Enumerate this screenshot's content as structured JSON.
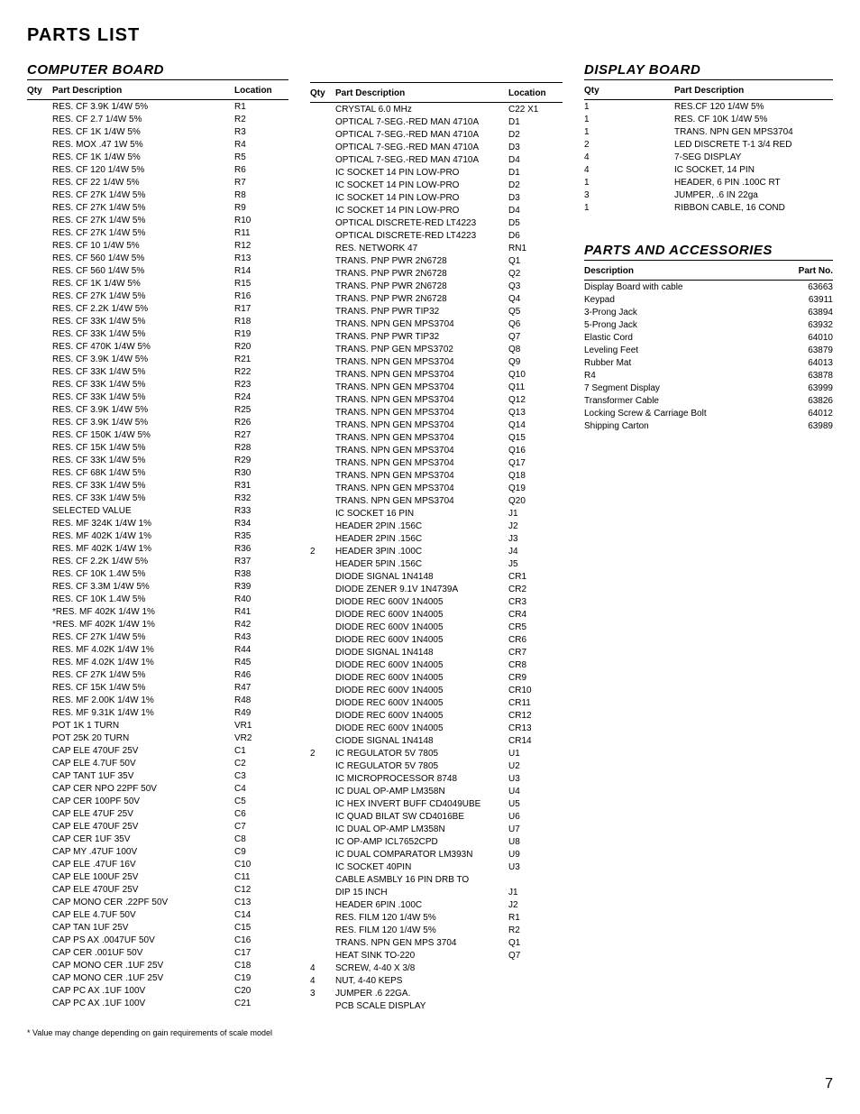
{
  "page": {
    "title": "PARTS LIST",
    "footnote": "* Value may change depending on gain requirements of scale model",
    "page_number": "7"
  },
  "computer_board": {
    "title": "COMPUTER BOARD",
    "headers": {
      "qty": "Qty",
      "desc": "Part Description",
      "loc": "Location"
    },
    "col1": [
      {
        "qty": "",
        "desc": "RES. CF 3.9K 1/4W 5%",
        "loc": "R1"
      },
      {
        "qty": "",
        "desc": "RES. CF 2.7 1/4W 5%",
        "loc": "R2"
      },
      {
        "qty": "",
        "desc": "RES. CF 1K 1/4W 5%",
        "loc": "R3"
      },
      {
        "qty": "",
        "desc": "RES. MOX .47 1W 5%",
        "loc": "R4"
      },
      {
        "qty": "",
        "desc": "RES. CF 1K 1/4W 5%",
        "loc": "R5"
      },
      {
        "qty": "",
        "desc": "RES. CF 120 1/4W 5%",
        "loc": "R6"
      },
      {
        "qty": "",
        "desc": "RES. CF 22 1/4W 5%",
        "loc": "R7"
      },
      {
        "qty": "",
        "desc": "RES. CF 27K 1/4W 5%",
        "loc": "R8"
      },
      {
        "qty": "",
        "desc": "RES. CF 27K 1/4W 5%",
        "loc": "R9"
      },
      {
        "qty": "",
        "desc": "RES. CF 27K 1/4W 5%",
        "loc": "R10"
      },
      {
        "qty": "",
        "desc": "RES. CF 27K 1/4W 5%",
        "loc": "R11"
      },
      {
        "qty": "",
        "desc": "RES. CF 10 1/4W 5%",
        "loc": "R12"
      },
      {
        "qty": "",
        "desc": "RES. CF 560 1/4W 5%",
        "loc": "R13"
      },
      {
        "qty": "",
        "desc": "RES. CF 560 1/4W 5%",
        "loc": "R14"
      },
      {
        "qty": "",
        "desc": "RES. CF 1K 1/4W 5%",
        "loc": "R15"
      },
      {
        "qty": "",
        "desc": "RES. CF 27K 1/4W 5%",
        "loc": "R16"
      },
      {
        "qty": "",
        "desc": "RES. CF 2.2K 1/4W 5%",
        "loc": "R17"
      },
      {
        "qty": "",
        "desc": "RES. CF 33K 1/4W 5%",
        "loc": "R18"
      },
      {
        "qty": "",
        "desc": "RES. CF 33K 1/4W 5%",
        "loc": "R19"
      },
      {
        "qty": "",
        "desc": "RES. CF 470K 1/4W 5%",
        "loc": "R20"
      },
      {
        "qty": "",
        "desc": "RES. CF 3.9K 1/4W 5%",
        "loc": "R21"
      },
      {
        "qty": "",
        "desc": "RES. CF 33K 1/4W 5%",
        "loc": "R22"
      },
      {
        "qty": "",
        "desc": "RES. CF 33K 1/4W 5%",
        "loc": "R23"
      },
      {
        "qty": "",
        "desc": "RES. CF 33K 1/4W 5%",
        "loc": "R24"
      },
      {
        "qty": "",
        "desc": "RES. CF 3.9K 1/4W 5%",
        "loc": "R25"
      },
      {
        "qty": "",
        "desc": "RES. CF 3.9K 1/4W 5%",
        "loc": "R26"
      },
      {
        "qty": "",
        "desc": "RES. CF 150K 1/4W 5%",
        "loc": "R27"
      },
      {
        "qty": "",
        "desc": "RES. CF 15K 1/4W 5%",
        "loc": "R28"
      },
      {
        "qty": "",
        "desc": "RES. CF 33K 1/4W 5%",
        "loc": "R29"
      },
      {
        "qty": "",
        "desc": "RES. CF 68K 1/4W 5%",
        "loc": "R30"
      },
      {
        "qty": "",
        "desc": "RES. CF 33K 1/4W 5%",
        "loc": "R31"
      },
      {
        "qty": "",
        "desc": "RES. CF 33K 1/4W 5%",
        "loc": "R32"
      },
      {
        "qty": "",
        "desc": "SELECTED VALUE",
        "loc": "R33"
      },
      {
        "qty": "",
        "desc": "RES. MF 324K 1/4W 1%",
        "loc": "R34"
      },
      {
        "qty": "",
        "desc": "RES. MF 402K 1/4W 1%",
        "loc": "R35"
      },
      {
        "qty": "",
        "desc": "RES. MF 402K 1/4W 1%",
        "loc": "R36"
      },
      {
        "qty": "",
        "desc": "RES. CF 2.2K 1/4W 5%",
        "loc": "R37"
      },
      {
        "qty": "",
        "desc": "RES. CF 10K 1.4W 5%",
        "loc": "R38"
      },
      {
        "qty": "",
        "desc": "RES. CF 3.3M 1/4W 5%",
        "loc": "R39"
      },
      {
        "qty": "",
        "desc": "RES. CF 10K 1.4W 5%",
        "loc": "R40"
      },
      {
        "qty": "",
        "desc": "*RES. MF 402K 1/4W 1%",
        "loc": "R41"
      },
      {
        "qty": "",
        "desc": "*RES. MF 402K 1/4W 1%",
        "loc": "R42"
      },
      {
        "qty": "",
        "desc": "RES. CF 27K 1/4W 5%",
        "loc": "R43"
      },
      {
        "qty": "",
        "desc": "RES. MF 4.02K 1/4W 1%",
        "loc": "R44"
      },
      {
        "qty": "",
        "desc": "RES. MF 4.02K 1/4W 1%",
        "loc": "R45"
      },
      {
        "qty": "",
        "desc": "RES. CF 27K 1/4W 5%",
        "loc": "R46"
      },
      {
        "qty": "",
        "desc": "RES. CF 15K 1/4W 5%",
        "loc": "R47"
      },
      {
        "qty": "",
        "desc": "RES. MF 2.00K 1/4W 1%",
        "loc": "R48"
      },
      {
        "qty": "",
        "desc": "RES. MF 9.31K 1/4W 1%",
        "loc": "R49"
      },
      {
        "qty": "",
        "desc": "POT 1K 1 TURN",
        "loc": "VR1"
      },
      {
        "qty": "",
        "desc": "POT 25K 20 TURN",
        "loc": "VR2"
      },
      {
        "qty": "",
        "desc": "CAP ELE 470UF 25V",
        "loc": "C1"
      },
      {
        "qty": "",
        "desc": "CAP ELE 4.7UF 50V",
        "loc": "C2"
      },
      {
        "qty": "",
        "desc": "CAP TANT 1UF 35V",
        "loc": "C3"
      },
      {
        "qty": "",
        "desc": "CAP CER NPO 22PF 50V",
        "loc": "C4"
      },
      {
        "qty": "",
        "desc": "CAP CER 100PF 50V",
        "loc": "C5"
      },
      {
        "qty": "",
        "desc": "CAP ELE 47UF 25V",
        "loc": "C6"
      },
      {
        "qty": "",
        "desc": "CAP ELE 470UF 25V",
        "loc": "C7"
      },
      {
        "qty": "",
        "desc": "CAP CER 1UF 35V",
        "loc": "C8"
      },
      {
        "qty": "",
        "desc": "CAP MY .47UF 100V",
        "loc": "C9"
      },
      {
        "qty": "",
        "desc": "CAP ELE .47UF 16V",
        "loc": "C10"
      },
      {
        "qty": "",
        "desc": "CAP ELE 100UF 25V",
        "loc": "C11"
      },
      {
        "qty": "",
        "desc": "CAP ELE 470UF 25V",
        "loc": "C12"
      },
      {
        "qty": "",
        "desc": "CAP MONO CER .22PF 50V",
        "loc": "C13"
      },
      {
        "qty": "",
        "desc": "CAP ELE 4.7UF 50V",
        "loc": "C14"
      },
      {
        "qty": "",
        "desc": "CAP TAN 1UF 25V",
        "loc": "C15"
      },
      {
        "qty": "",
        "desc": "CAP PS AX .0047UF 50V",
        "loc": "C16"
      },
      {
        "qty": "",
        "desc": "CAP CER .001UF 50V",
        "loc": "C17"
      },
      {
        "qty": "",
        "desc": "CAP MONO CER .1UF 25V",
        "loc": "C18"
      },
      {
        "qty": "",
        "desc": "CAP MONO CER .1UF 25V",
        "loc": "C19"
      },
      {
        "qty": "",
        "desc": "CAP PC AX .1UF 100V",
        "loc": "C20"
      },
      {
        "qty": "",
        "desc": "CAP PC AX .1UF 100V",
        "loc": "C21"
      }
    ],
    "col2": [
      {
        "qty": "",
        "desc": "CRYSTAL 6.0 MHz",
        "loc": "C22 X1"
      },
      {
        "qty": "",
        "desc": "OPTICAL 7-SEG.-RED MAN 4710A",
        "loc": "D1"
      },
      {
        "qty": "",
        "desc": "OPTICAL 7-SEG.-RED MAN 4710A",
        "loc": "D2"
      },
      {
        "qty": "",
        "desc": "OPTICAL 7-SEG.-RED MAN 4710A",
        "loc": "D3"
      },
      {
        "qty": "",
        "desc": "OPTICAL 7-SEG.-RED MAN 4710A",
        "loc": "D4"
      },
      {
        "qty": "",
        "desc": "IC SOCKET 14 PIN LOW-PRO",
        "loc": "D1"
      },
      {
        "qty": "",
        "desc": "IC SOCKET 14 PIN LOW-PRO",
        "loc": "D2"
      },
      {
        "qty": "",
        "desc": "IC SOCKET 14 PIN LOW-PRO",
        "loc": "D3"
      },
      {
        "qty": "",
        "desc": "IC SOCKET 14 PIN LOW-PRO",
        "loc": "D4"
      },
      {
        "qty": "",
        "desc": "OPTICAL DISCRETE-RED LT4223",
        "loc": "D5"
      },
      {
        "qty": "",
        "desc": "OPTICAL DISCRETE-RED LT4223",
        "loc": "D6"
      },
      {
        "qty": "",
        "desc": "RES. NETWORK 47",
        "loc": "RN1"
      },
      {
        "qty": "",
        "desc": "TRANS. PNP PWR 2N6728",
        "loc": "Q1"
      },
      {
        "qty": "",
        "desc": "TRANS. PNP PWR 2N6728",
        "loc": "Q2"
      },
      {
        "qty": "",
        "desc": "TRANS. PNP PWR 2N6728",
        "loc": "Q3"
      },
      {
        "qty": "",
        "desc": "TRANS. PNP PWR 2N6728",
        "loc": "Q4"
      },
      {
        "qty": "",
        "desc": "TRANS. PNP PWR TIP32",
        "loc": "Q5"
      },
      {
        "qty": "",
        "desc": "TRANS. NPN GEN MPS3704",
        "loc": "Q6"
      },
      {
        "qty": "",
        "desc": "TRANS. PNP PWR TIP32",
        "loc": "Q7"
      },
      {
        "qty": "",
        "desc": "TRANS. PNP GEN MPS3702",
        "loc": "Q8"
      },
      {
        "qty": "",
        "desc": "TRANS. NPN GEN MPS3704",
        "loc": "Q9"
      },
      {
        "qty": "",
        "desc": "TRANS. NPN GEN MPS3704",
        "loc": "Q10"
      },
      {
        "qty": "",
        "desc": "TRANS. NPN GEN MPS3704",
        "loc": "Q11"
      },
      {
        "qty": "",
        "desc": "TRANS. NPN GEN MPS3704",
        "loc": "Q12"
      },
      {
        "qty": "",
        "desc": "TRANS. NPN GEN MPS3704",
        "loc": "Q13"
      },
      {
        "qty": "",
        "desc": "TRANS. NPN GEN MPS3704",
        "loc": "Q14"
      },
      {
        "qty": "",
        "desc": "TRANS. NPN GEN MPS3704",
        "loc": "Q15"
      },
      {
        "qty": "",
        "desc": "TRANS. NPN GEN MPS3704",
        "loc": "Q16"
      },
      {
        "qty": "",
        "desc": "TRANS. NPN GEN MPS3704",
        "loc": "Q17"
      },
      {
        "qty": "",
        "desc": "TRANS. NPN GEN MPS3704",
        "loc": "Q18"
      },
      {
        "qty": "",
        "desc": "TRANS. NPN GEN MPS3704",
        "loc": "Q19"
      },
      {
        "qty": "",
        "desc": "TRANS. NPN GEN MPS3704",
        "loc": "Q20"
      },
      {
        "qty": "",
        "desc": "IC SOCKET 16 PIN",
        "loc": "J1"
      },
      {
        "qty": "",
        "desc": "HEADER 2PIN .156C",
        "loc": "J2"
      },
      {
        "qty": "",
        "desc": "HEADER 2PIN .156C",
        "loc": "J3"
      },
      {
        "qty": "2",
        "desc": "HEADER 3PIN .100C",
        "loc": "J4"
      },
      {
        "qty": "",
        "desc": "HEADER 5PIN .156C",
        "loc": "J5"
      },
      {
        "qty": "",
        "desc": "DIODE SIGNAL 1N4148",
        "loc": "CR1"
      },
      {
        "qty": "",
        "desc": "DIODE ZENER 9.1V 1N4739A",
        "loc": "CR2"
      },
      {
        "qty": "",
        "desc": "DIODE REC 600V 1N4005",
        "loc": "CR3"
      },
      {
        "qty": "",
        "desc": "DIODE REC 600V 1N4005",
        "loc": "CR4"
      },
      {
        "qty": "",
        "desc": "DIODE REC 600V 1N4005",
        "loc": "CR5"
      },
      {
        "qty": "",
        "desc": "DIODE REC 600V 1N4005",
        "loc": "CR6"
      },
      {
        "qty": "",
        "desc": "DIODE SIGNAL 1N4148",
        "loc": "CR7"
      },
      {
        "qty": "",
        "desc": "DIODE REC 600V 1N4005",
        "loc": "CR8"
      },
      {
        "qty": "",
        "desc": "DIODE REC 600V 1N4005",
        "loc": "CR9"
      },
      {
        "qty": "",
        "desc": "DIODE REC 600V 1N4005",
        "loc": "CR10"
      },
      {
        "qty": "",
        "desc": "DIODE REC 600V 1N4005",
        "loc": "CR11"
      },
      {
        "qty": "",
        "desc": "DIODE REC 600V 1N4005",
        "loc": "CR12"
      },
      {
        "qty": "",
        "desc": "DIODE REC 600V 1N4005",
        "loc": "CR13"
      },
      {
        "qty": "",
        "desc": "CIODE SIGNAL 1N4148",
        "loc": "CR14"
      },
      {
        "qty": "2",
        "desc": "IC REGULATOR 5V 7805",
        "loc": "U1"
      },
      {
        "qty": "",
        "desc": "IC REGULATOR 5V 7805",
        "loc": "U2"
      },
      {
        "qty": "",
        "desc": "IC MICROPROCESSOR 8748",
        "loc": "U3"
      },
      {
        "qty": "",
        "desc": "IC DUAL OP-AMP LM358N",
        "loc": "U4"
      },
      {
        "qty": "",
        "desc": "IC HEX INVERT BUFF CD4049UBE",
        "loc": "U5"
      },
      {
        "qty": "",
        "desc": "IC QUAD BILAT SW CD4016BE",
        "loc": "U6"
      },
      {
        "qty": "",
        "desc": "IC DUAL OP-AMP LM358N",
        "loc": "U7"
      },
      {
        "qty": "",
        "desc": "IC OP-AMP ICL7652CPD",
        "loc": "U8"
      },
      {
        "qty": "",
        "desc": "IC DUAL COMPARATOR LM393N",
        "loc": "U9"
      },
      {
        "qty": "",
        "desc": "IC SOCKET 40PIN",
        "loc": "U3"
      },
      {
        "qty": "",
        "desc": "CABLE ASMBLY 16 PIN DRB TO",
        "loc": ""
      },
      {
        "qty": "",
        "desc": "DIP 15 INCH",
        "loc": "J1"
      },
      {
        "qty": "",
        "desc": "HEADER 6PIN .100C",
        "loc": "J2"
      },
      {
        "qty": "",
        "desc": "RES. FILM 120 1/4W 5%",
        "loc": "R1"
      },
      {
        "qty": "",
        "desc": "RES. FILM 120 1/4W 5%",
        "loc": "R2"
      },
      {
        "qty": "",
        "desc": "TRANS. NPN GEN MPS 3704",
        "loc": "Q1"
      },
      {
        "qty": "",
        "desc": "HEAT SINK TO-220",
        "loc": "Q7"
      },
      {
        "qty": "4",
        "desc": "SCREW, 4-40 X 3/8",
        "loc": ""
      },
      {
        "qty": "4",
        "desc": "NUT, 4-40 KEPS",
        "loc": ""
      },
      {
        "qty": "3",
        "desc": "JUMPER .6 22GA.",
        "loc": ""
      },
      {
        "qty": "",
        "desc": "PCB SCALE DISPLAY",
        "loc": ""
      }
    ]
  },
  "display_board": {
    "title": "DISPLAY BOARD",
    "headers": {
      "qty": "Qty",
      "desc": "Part Description"
    },
    "rows": [
      {
        "qty": "1",
        "desc": "RES.CF 120 1/4W 5%"
      },
      {
        "qty": "1",
        "desc": "RES. CF 10K 1/4W 5%"
      },
      {
        "qty": "1",
        "desc": "TRANS. NPN GEN MPS3704"
      },
      {
        "qty": "2",
        "desc": "LED DISCRETE T-1 3/4 RED"
      },
      {
        "qty": "4",
        "desc": "7-SEG DISPLAY"
      },
      {
        "qty": "4",
        "desc": "IC SOCKET, 14 PIN"
      },
      {
        "qty": "1",
        "desc": "HEADER, 6 PIN .100C RT"
      },
      {
        "qty": "3",
        "desc": "JUMPER, .6 IN 22ga"
      },
      {
        "qty": "1",
        "desc": "RIBBON CABLE, 16 COND"
      }
    ]
  },
  "parts_accessories": {
    "title": "PARTS AND ACCESSORIES",
    "headers": {
      "desc": "Description",
      "pn": "Part No."
    },
    "rows": [
      {
        "desc": "Display Board with cable",
        "pn": "63663"
      },
      {
        "desc": "Keypad",
        "pn": "63911"
      },
      {
        "desc": "3-Prong Jack",
        "pn": "63894"
      },
      {
        "desc": "5-Prong Jack",
        "pn": "63932"
      },
      {
        "desc": "Elastic Cord",
        "pn": "64010"
      },
      {
        "desc": "Leveling Feet",
        "pn": "63879"
      },
      {
        "desc": "Rubber Mat",
        "pn": "64013"
      },
      {
        "desc": "R4",
        "pn": "63878"
      },
      {
        "desc": "7 Segment Display",
        "pn": "63999"
      },
      {
        "desc": "Transformer Cable",
        "pn": "63826"
      },
      {
        "desc": "Locking Screw & Carriage Bolt",
        "pn": "64012"
      },
      {
        "desc": "Shipping Carton",
        "pn": "63989"
      }
    ]
  }
}
